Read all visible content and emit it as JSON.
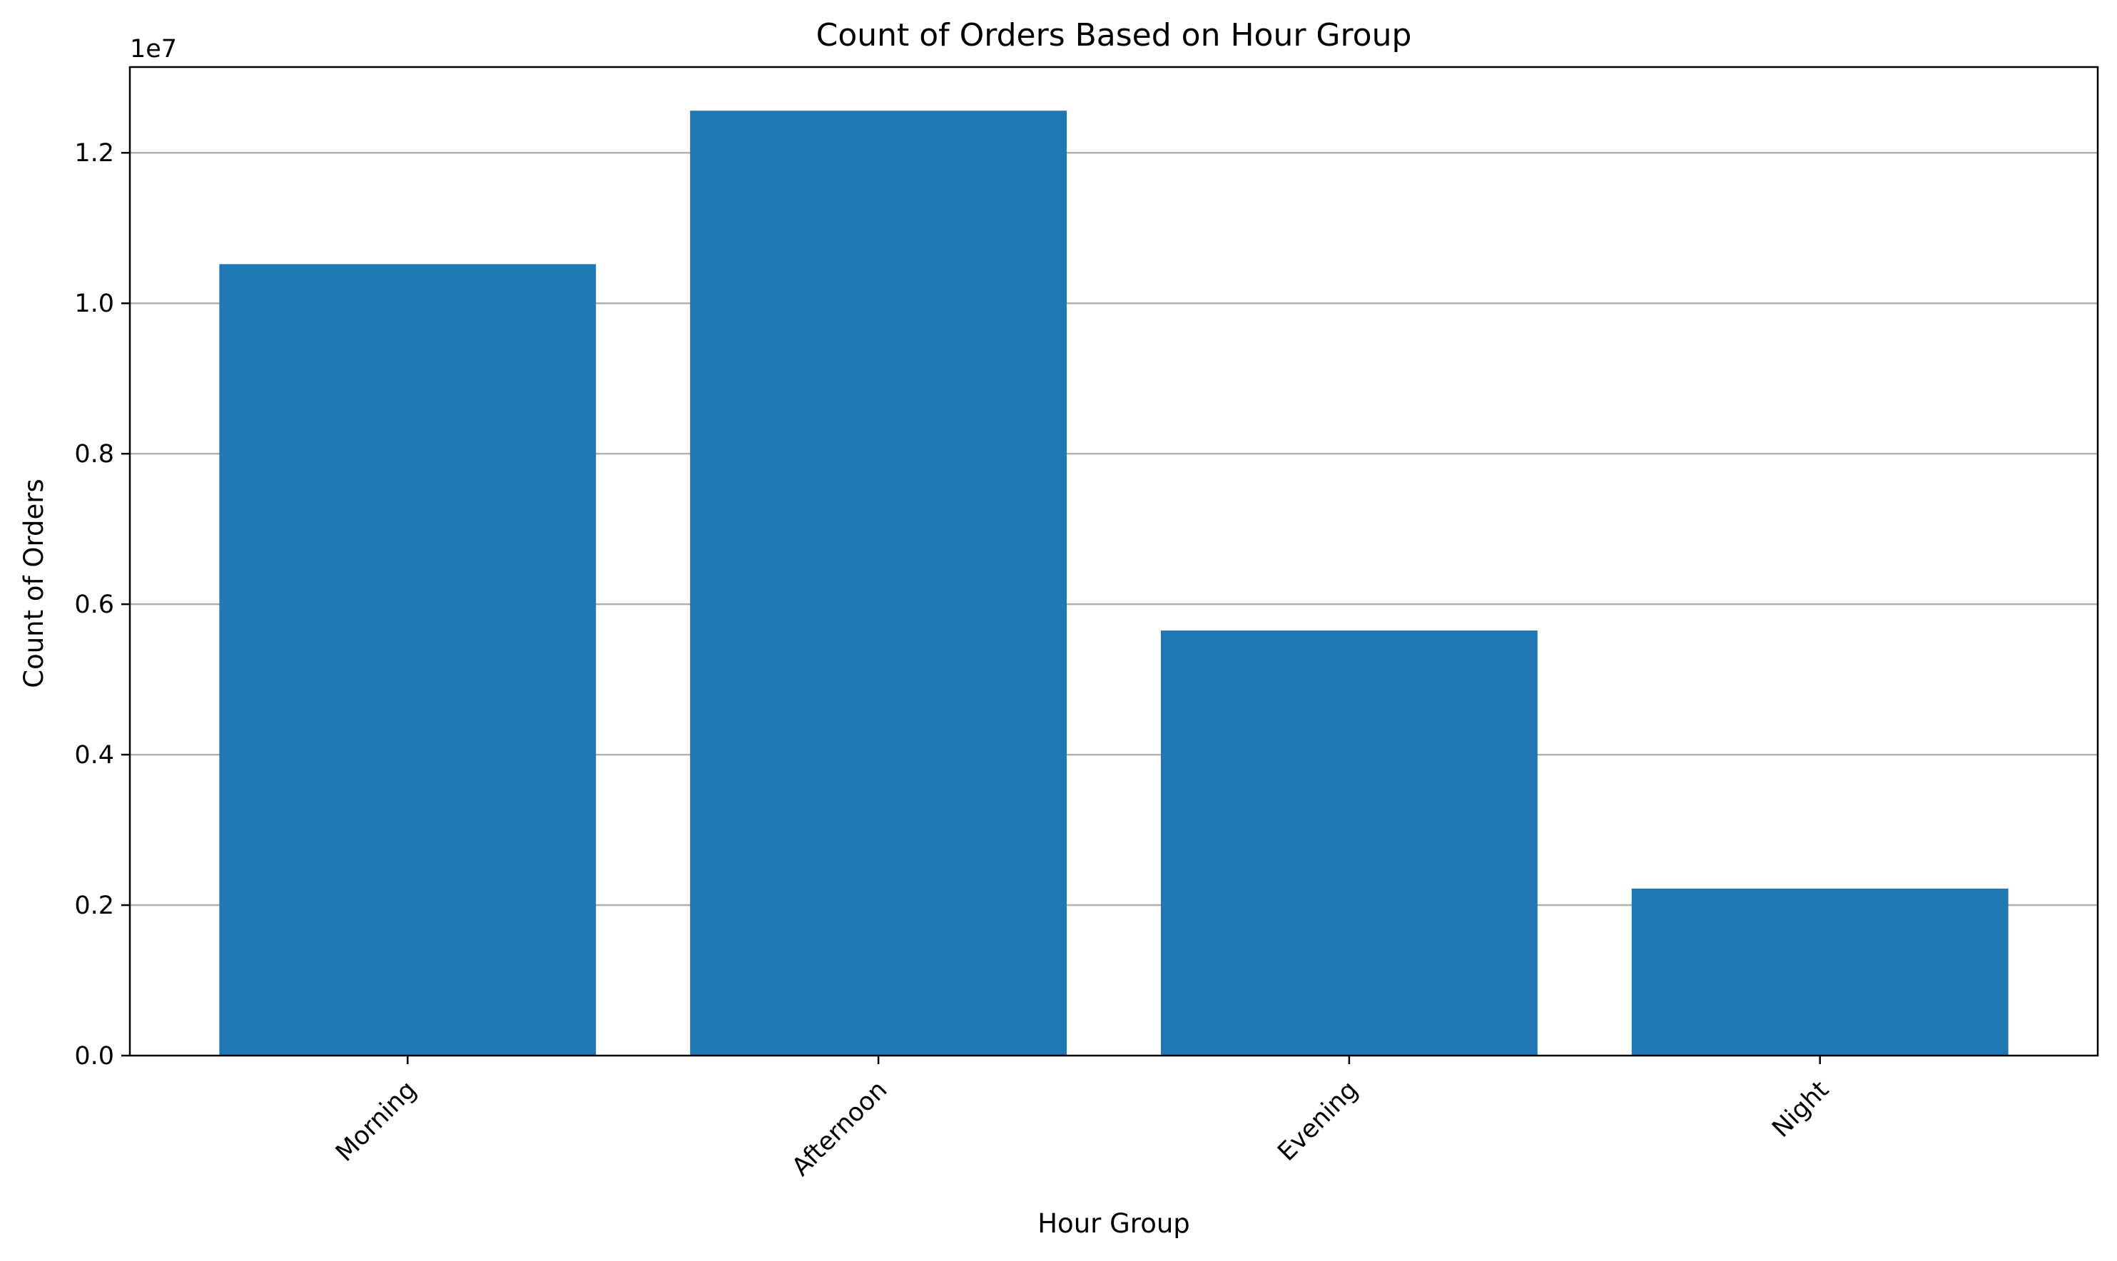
{
  "chart_data": {
    "type": "bar",
    "title": "Count of Orders Based on Hour Group",
    "xlabel": "Hour Group",
    "ylabel": "Count of Orders",
    "y_offset_label": "1e7",
    "categories": [
      "Morning",
      "Afternoon",
      "Evening",
      "Night"
    ],
    "values": [
      10520000,
      12560000,
      5650000,
      2220000
    ],
    "ylim": [
      0,
      13140000
    ],
    "yticks": [
      0,
      2000000,
      4000000,
      6000000,
      8000000,
      10000000,
      12000000
    ],
    "ytick_labels": [
      "0.0",
      "0.2",
      "0.4",
      "0.6",
      "0.8",
      "1.0",
      "1.2"
    ],
    "grid": "y",
    "bar_color": "#1f77b4",
    "grid_color": "#b0b0b0"
  }
}
